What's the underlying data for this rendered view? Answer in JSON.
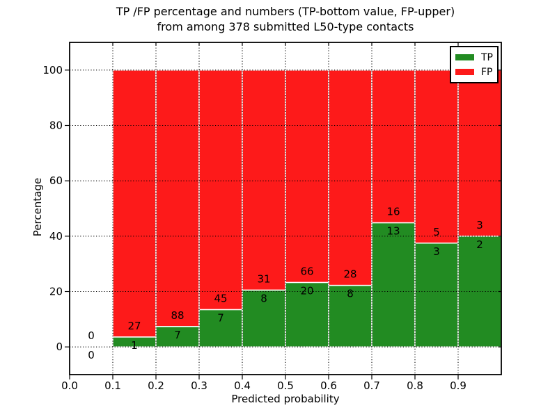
{
  "figure": {
    "title_line1": "TP /FP percentage and numbers (TP-bottom value, FP-upper)",
    "title_line2": "from among 378 submitted L50-type contacts",
    "xlabel": "Predicted probability",
    "ylabel": "Percentage"
  },
  "legend": {
    "position": "upper right",
    "items": [
      {
        "label": "TP",
        "color": "#228b22"
      },
      {
        "label": "FP",
        "color": "#fd1a1a"
      }
    ]
  },
  "colors": {
    "tp": "#228b22",
    "fp": "#fd1a1a",
    "background": "#ffffff",
    "grid": "#000000",
    "bar_edge": "#ffffff",
    "spine": "#000000"
  },
  "chart_data": {
    "type": "bar",
    "stacked": true,
    "title": "TP /FP percentage and numbers (TP-bottom value, FP-upper) from among 378 submitted L50-type contacts",
    "xlabel": "Predicted probability",
    "ylabel": "Percentage",
    "xlim": [
      0.0,
      1.0
    ],
    "ylim": [
      -10,
      110
    ],
    "xticks": [
      "0.0",
      "0.1",
      "0.2",
      "0.3",
      "0.4",
      "0.5",
      "0.6",
      "0.7",
      "0.8",
      "0.9"
    ],
    "yticks": [
      0,
      20,
      40,
      60,
      80,
      100
    ],
    "grid": true,
    "grid_style": "dotted",
    "legend_position": "upper right",
    "total_submitted": 378,
    "bin_width": 0.1,
    "bins": [
      {
        "x_start": 0.0,
        "x_end": 0.1,
        "tp_count": 0,
        "fp_count": 0,
        "tp_pct": 0,
        "fp_pct": 0
      },
      {
        "x_start": 0.1,
        "x_end": 0.2,
        "tp_count": 1,
        "fp_count": 27,
        "tp_pct": 3.57,
        "fp_pct": 96.43
      },
      {
        "x_start": 0.2,
        "x_end": 0.3,
        "tp_count": 7,
        "fp_count": 88,
        "tp_pct": 7.37,
        "fp_pct": 92.63
      },
      {
        "x_start": 0.3,
        "x_end": 0.4,
        "tp_count": 7,
        "fp_count": 45,
        "tp_pct": 13.46,
        "fp_pct": 86.54
      },
      {
        "x_start": 0.4,
        "x_end": 0.5,
        "tp_count": 8,
        "fp_count": 31,
        "tp_pct": 20.51,
        "fp_pct": 79.49
      },
      {
        "x_start": 0.5,
        "x_end": 0.6,
        "tp_count": 20,
        "fp_count": 66,
        "tp_pct": 23.26,
        "fp_pct": 76.74
      },
      {
        "x_start": 0.6,
        "x_end": 0.7,
        "tp_count": 8,
        "fp_count": 28,
        "tp_pct": 22.22,
        "fp_pct": 77.78
      },
      {
        "x_start": 0.7,
        "x_end": 0.8,
        "tp_count": 13,
        "fp_count": 16,
        "tp_pct": 44.83,
        "fp_pct": 55.17
      },
      {
        "x_start": 0.8,
        "x_end": 0.9,
        "tp_count": 3,
        "fp_count": 5,
        "tp_pct": 37.5,
        "fp_pct": 62.5
      },
      {
        "x_start": 0.9,
        "x_end": 1.0,
        "tp_count": 2,
        "fp_count": 3,
        "tp_pct": 40.0,
        "fp_pct": 60.0
      }
    ],
    "series": [
      {
        "name": "TP",
        "color": "#228b22"
      },
      {
        "name": "FP",
        "color": "#fd1a1a"
      }
    ]
  }
}
